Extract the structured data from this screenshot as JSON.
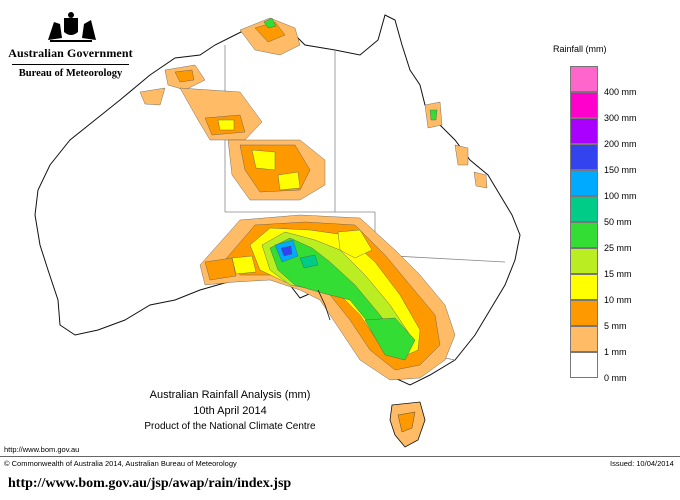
{
  "header": {
    "government": "Australian Government",
    "bureau": "Bureau of Meteorology"
  },
  "legend": {
    "title": "Rainfall (mm)",
    "items": [
      {
        "label": "",
        "color": "#ff66cc"
      },
      {
        "label": "400 mm",
        "color": "#ff00cc"
      },
      {
        "label": "300 mm",
        "color": "#aa00ff"
      },
      {
        "label": "200 mm",
        "color": "#3344ee"
      },
      {
        "label": "150 mm",
        "color": "#00aaff"
      },
      {
        "label": "100 mm",
        "color": "#00cc88"
      },
      {
        "label": "50 mm",
        "color": "#33dd33"
      },
      {
        "label": "25 mm",
        "color": "#bbee22"
      },
      {
        "label": "15 mm",
        "color": "#ffff00"
      },
      {
        "label": "10 mm",
        "color": "#ff9900"
      },
      {
        "label": "5 mm",
        "color": "#ffbb66"
      },
      {
        "label": "1 mm",
        "color": "#ffffff"
      },
      {
        "label": "0 mm",
        "color": null
      }
    ]
  },
  "map": {
    "title": "Australian Rainfall Analysis (mm)",
    "date": "10th April 2014",
    "credit": "Product of the National Climate Centre",
    "website": "http://www.bom.gov.au"
  },
  "footer": {
    "copyright": "© Commonwealth of Australia 2014, Australian Bureau of Meteorology",
    "issued": "Issued: 10/04/2014",
    "source_url": "http://www.bom.gov.au/jsp/awap/rain/index.jsp"
  }
}
